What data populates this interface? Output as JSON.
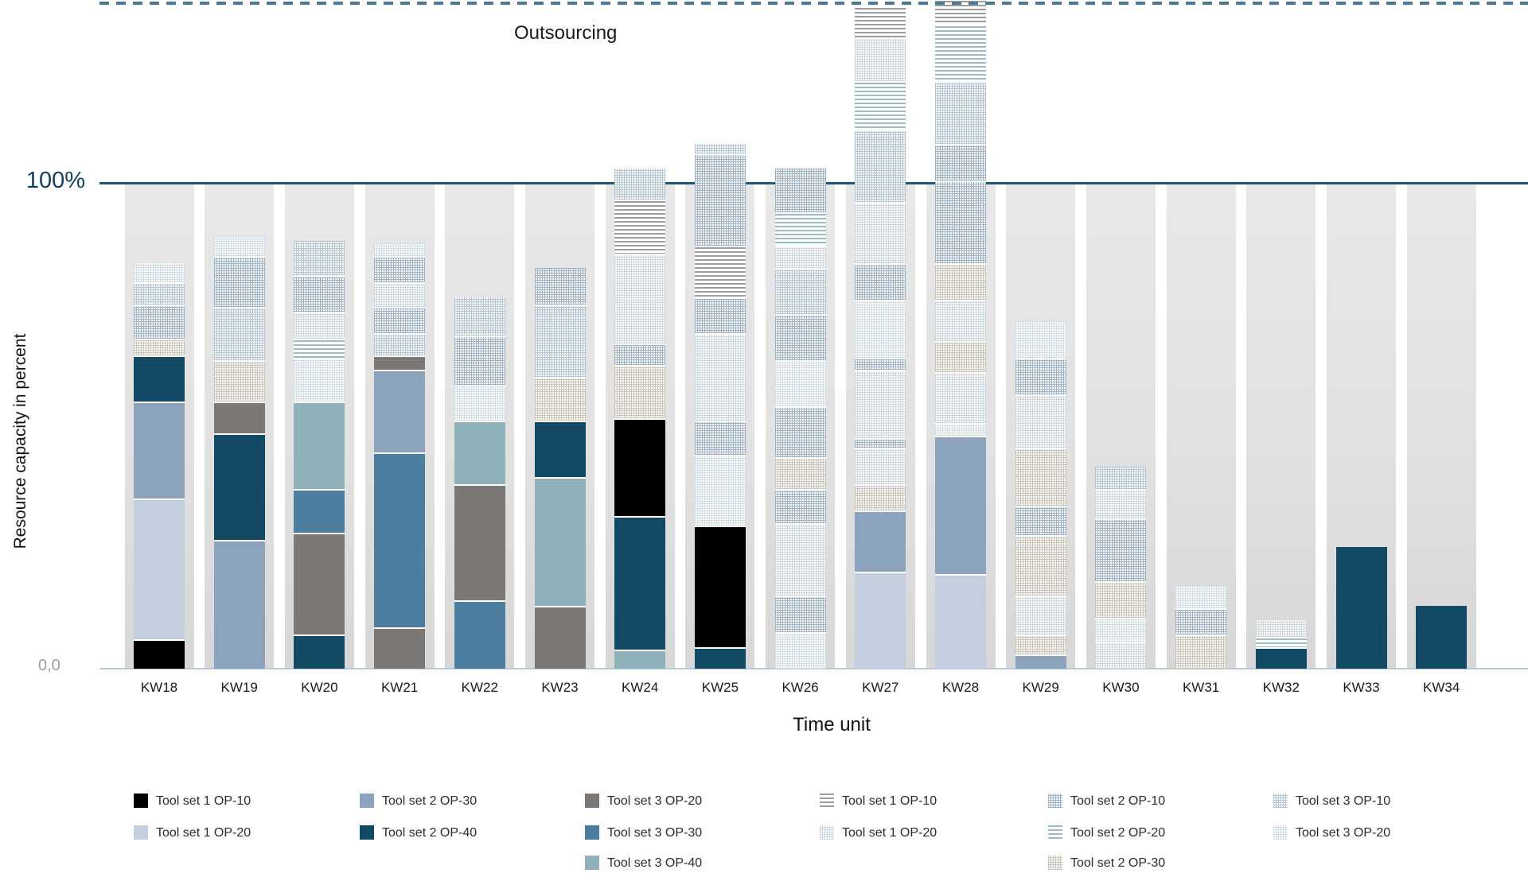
{
  "chart_data": {
    "type": "stacked_bar",
    "annotation": "Outsourcing",
    "ylabel": "Resource capacity in percent",
    "xlabel": "Time unit",
    "y_axis": {
      "tick_zero": "0,0",
      "tick_hundred": "100%",
      "ylim": [
        0,
        140
      ],
      "hundred_line_color": "#1d5a74",
      "dashed_line_color": "#4c7a99",
      "baseline_color": "#bccbd8",
      "grid": "off"
    },
    "legend_position": "bottom",
    "categories": [
      "KW18",
      "KW19",
      "KW20",
      "KW21",
      "KW22",
      "KW23",
      "KW24",
      "KW25",
      "KW26",
      "KW27",
      "KW28",
      "KW29",
      "KW30",
      "KW31",
      "KW32",
      "KW33",
      "KW34"
    ],
    "series": {
      "s1op10": {
        "label": "Tool set 1 OP-10",
        "color": "#000000",
        "pattern": "solid"
      },
      "s1op20": {
        "label": "Tool set 1 OP-20",
        "color": "#c3cfdf",
        "pattern": "solid"
      },
      "s2op30": {
        "label": "Tool set 2 OP-30",
        "color": "#8ba3bd",
        "pattern": "solid"
      },
      "s2op40": {
        "label": "Tool set 2 OP-40",
        "color": "#124a66",
        "pattern": "solid"
      },
      "s3op20": {
        "label": "Tool set 3 OP-20",
        "color": "#7b7875",
        "pattern": "solid"
      },
      "s3op30": {
        "label": "Tool set 3 OP-30",
        "color": "#4d7ea0",
        "pattern": "solid"
      },
      "s3op40": {
        "label": "Tool set 3 OP-40",
        "color": "#8fb2ba",
        "pattern": "solid"
      },
      "h1op10": {
        "label": "Tool set 1 OP-10",
        "color": "#9f9f9f",
        "pattern": "hstripes"
      },
      "h1op20": {
        "label": "Tool set 1 OP-20",
        "color": "#cdd5dd",
        "pattern": "grid"
      },
      "h2op10": {
        "label": "Tool set 2 OP-10",
        "color": "#9db2c6",
        "pattern": "grid"
      },
      "h2op20": {
        "label": "Tool set 2 OP-20",
        "color": "#9bbcc3",
        "pattern": "hstripes"
      },
      "h2op30": {
        "label": "Tool set 2 OP-30",
        "color": "#c9c3b8",
        "pattern": "grid"
      },
      "h3op10": {
        "label": "Tool set 3 OP-10",
        "color": "#b3c5d5",
        "pattern": "grid"
      },
      "h3op20": {
        "label": "Tool set 3 OP-20",
        "color": "#d3dde5",
        "pattern": "grid"
      }
    },
    "legend_columns": [
      [
        "s1op10",
        "s1op20"
      ],
      [
        "s2op30",
        "s2op40"
      ],
      [
        "s3op20",
        "s3op30",
        "s3op40"
      ],
      [
        "h1op10",
        "h1op20"
      ],
      [
        "h2op10",
        "h2op20",
        "h2op30"
      ],
      [
        "h3op10",
        "h3op20"
      ]
    ],
    "bars": [
      {
        "category": "KW18",
        "segments": [
          [
            "s1op10",
            6
          ],
          [
            "s1op20",
            29
          ],
          [
            "s2op30",
            20
          ],
          [
            "s2op40",
            9.5
          ],
          [
            "h2op30",
            3.5
          ],
          [
            "h2op10",
            7
          ],
          [
            "h3op10",
            4.5
          ],
          [
            "h3op20",
            4
          ]
        ]
      },
      {
        "category": "KW19",
        "segments": [
          [
            "s2op30",
            26.5
          ],
          [
            "s2op40",
            22
          ],
          [
            "s3op20",
            6.5
          ],
          [
            "h2op30",
            8.5
          ],
          [
            "h3op10",
            11
          ],
          [
            "h2op10",
            10.5
          ],
          [
            "h3op20",
            4
          ]
        ]
      },
      {
        "category": "KW20",
        "segments": [
          [
            "s2op40",
            7
          ],
          [
            "s3op20",
            21
          ],
          [
            "s3op30",
            9
          ],
          [
            "s3op40",
            18
          ],
          [
            "h3op20",
            9
          ],
          [
            "h2op20",
            4
          ],
          [
            "h1op20",
            5.5
          ],
          [
            "h2op10",
            7.5
          ],
          [
            "h3op10",
            7
          ]
        ]
      },
      {
        "category": "KW21",
        "segments": [
          [
            "s3op20",
            8.5
          ],
          [
            "s3op30",
            36
          ],
          [
            "s2op30",
            17
          ],
          [
            "s3op20",
            3
          ],
          [
            "h3op10",
            4.5
          ],
          [
            "h2op10",
            5.5
          ],
          [
            "h1op20",
            5
          ],
          [
            "h2op10",
            5.5
          ],
          [
            "h3op20",
            2.5
          ]
        ]
      },
      {
        "category": "KW22",
        "segments": [
          [
            "s3op30",
            14
          ],
          [
            "s3op20",
            24
          ],
          [
            "s3op40",
            13
          ],
          [
            "h3op20",
            7.5
          ],
          [
            "h2op10",
            10
          ],
          [
            "h3op10",
            8
          ]
        ]
      },
      {
        "category": "KW23",
        "segments": [
          [
            "s3op20",
            13
          ],
          [
            "s3op40",
            26.5
          ],
          [
            "s2op40",
            11.5
          ],
          [
            "h2op30",
            9
          ],
          [
            "h3op10",
            15
          ],
          [
            "h2op10",
            7.5
          ]
        ]
      },
      {
        "category": "KW24",
        "segments": [
          [
            "s3op40",
            4
          ],
          [
            "s2op40",
            27.5
          ],
          [
            "s1op10",
            20
          ],
          [
            "h2op30",
            11
          ],
          [
            "h2op10",
            4.5
          ],
          [
            "h1op20",
            18.5
          ],
          [
            "h1op10",
            11
          ],
          [
            "h3op10",
            6.5
          ]
        ]
      },
      {
        "category": "KW25",
        "segments": [
          [
            "s2op40",
            4.5
          ],
          [
            "s1op10",
            25
          ],
          [
            "h3op20",
            14.5
          ],
          [
            "h2op10",
            7
          ],
          [
            "h1op20",
            18
          ],
          [
            "h2op10",
            7.5
          ],
          [
            "h1op10",
            10.5
          ],
          [
            "h2op10",
            19
          ],
          [
            "h3op10",
            2
          ]
        ]
      },
      {
        "category": "KW26",
        "segments": [
          [
            "h3op20",
            7.5
          ],
          [
            "h2op10",
            7.5
          ],
          [
            "h1op20",
            15
          ],
          [
            "h2op10",
            7
          ],
          [
            "h2op30",
            6.5
          ],
          [
            "h2op10",
            10.5
          ],
          [
            "h3op20",
            9.5
          ],
          [
            "h2op10",
            9.5
          ],
          [
            "h3op10",
            9.5
          ],
          [
            "h1op20",
            4.5
          ],
          [
            "h2op20",
            7
          ],
          [
            "h2op10",
            9
          ]
        ]
      },
      {
        "category": "KW27",
        "segments": [
          [
            "s1op20",
            20
          ],
          [
            "s2op30",
            12.5
          ],
          [
            "h2op30",
            5.5
          ],
          [
            "h1op20",
            7.5
          ],
          [
            "h2op10",
            2
          ],
          [
            "h1op20",
            14
          ],
          [
            "h2op10",
            2.5
          ],
          [
            "h3op20",
            12
          ],
          [
            "h2op10",
            7.5
          ],
          [
            "h1op20",
            12.5
          ],
          [
            "h3op10",
            15
          ],
          [
            "h2op20",
            10
          ],
          [
            "h1op20",
            9
          ],
          [
            "h1op10",
            6
          ]
        ]
      },
      {
        "category": "KW28",
        "segments": [
          [
            "s1op20",
            19.5
          ],
          [
            "s2op30",
            28.5
          ],
          [
            "h3op20",
            2.5
          ],
          [
            "h1op20",
            10.5
          ],
          [
            "h2op30",
            6.5
          ],
          [
            "h1op20",
            8.5
          ],
          [
            "h2op30",
            7.5
          ],
          [
            "h2op10",
            17
          ],
          [
            "h2op10",
            7.5
          ],
          [
            "h3op10",
            13
          ],
          [
            "h2op20",
            11.5
          ],
          [
            "h1op10",
            5
          ]
        ]
      },
      {
        "category": "KW29",
        "segments": [
          [
            "s2op30",
            3
          ],
          [
            "h2op30",
            4
          ],
          [
            "h1op20",
            8
          ],
          [
            "h2op30",
            12.5
          ],
          [
            "h2op10",
            6
          ],
          [
            "h2op30",
            12
          ],
          [
            "h1op20",
            11
          ],
          [
            "h2op10",
            7.5
          ],
          [
            "h3op20",
            7.5
          ]
        ]
      },
      {
        "category": "KW30",
        "segments": [
          [
            "h1op20",
            5.5
          ],
          [
            "h3op20",
            5
          ],
          [
            "h2op30",
            7.5
          ],
          [
            "h2op10",
            13
          ],
          [
            "h1op20",
            6
          ],
          [
            "h3op10",
            4.5
          ]
        ]
      },
      {
        "category": "KW31",
        "segments": [
          [
            "h2op30",
            7
          ],
          [
            "h2op10",
            5.5
          ],
          [
            "h3op20",
            4.5
          ]
        ]
      },
      {
        "category": "KW32",
        "segments": [
          [
            "s2op40",
            4.5
          ],
          [
            "h2op20",
            2
          ],
          [
            "h1op20",
            3.5
          ]
        ]
      },
      {
        "category": "KW33",
        "segments": [
          [
            "s2op40",
            25
          ]
        ]
      },
      {
        "category": "KW34",
        "segments": [
          [
            "s2op40",
            13
          ]
        ]
      }
    ]
  }
}
